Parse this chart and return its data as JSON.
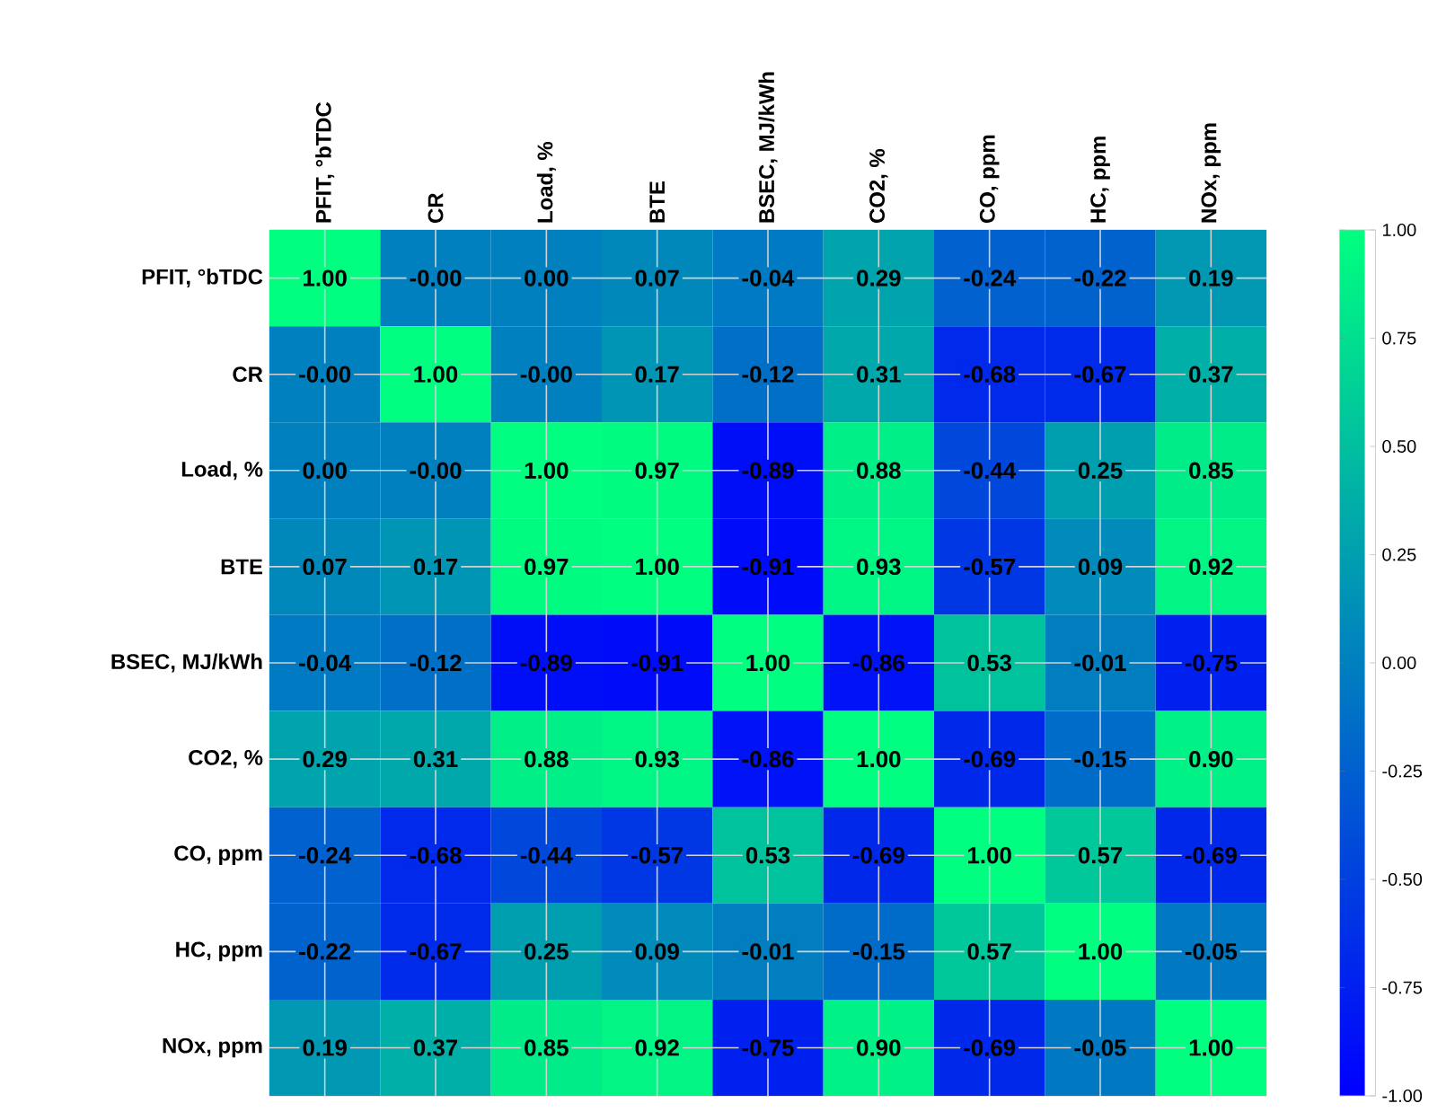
{
  "chart_data": {
    "type": "heatmap",
    "categories": [
      "PFIT, °bTDC",
      "CR",
      "Load, %",
      "BTE",
      "BSEC, MJ/kWh",
      "CO2, %",
      "CO, ppm",
      "HC, ppm",
      "NOx, ppm"
    ],
    "y_categories": [
      "PFIT, °bTDC",
      "CR",
      "Load, %",
      "BTE",
      "BSEC, MJ/kWh",
      "CO2, %",
      "CO, ppm",
      "HC, ppm",
      "NOx, ppm"
    ],
    "cells": [
      [
        1.0,
        0,
        0,
        0.07,
        -0.04,
        0.29,
        -0.24,
        -0.22,
        0.19
      ],
      [
        0,
        1.0,
        0,
        0.17,
        -0.12,
        0.31,
        -0.68,
        -0.67,
        0.37
      ],
      [
        0,
        0,
        1.0,
        0.97,
        -0.89,
        0.88,
        -0.44,
        0.25,
        0.85
      ],
      [
        0.07,
        0.17,
        0.97,
        1.0,
        -0.91,
        0.93,
        -0.57,
        0.09,
        0.92
      ],
      [
        -0.04,
        -0.12,
        -0.89,
        -0.91,
        1.0,
        -0.86,
        0.53,
        -0.01,
        -0.75
      ],
      [
        0.29,
        0.31,
        0.88,
        0.93,
        -0.86,
        1.0,
        -0.69,
        -0.15,
        0.9
      ],
      [
        -0.24,
        -0.68,
        -0.44,
        -0.57,
        0.53,
        -0.69,
        1.0,
        0.57,
        -0.69
      ],
      [
        -0.22,
        -0.67,
        0.25,
        0.09,
        -0.01,
        -0.15,
        0.57,
        1.0,
        -0.05
      ],
      [
        0.19,
        0.37,
        0.85,
        0.92,
        -0.75,
        0.9,
        -0.69,
        -0.05,
        1.0
      ]
    ],
    "cell_labels": [
      [
        "1.00",
        "-0.00",
        "0.00",
        "0.07",
        "-0.04",
        "0.29",
        "-0.24",
        "-0.22",
        "0.19"
      ],
      [
        "-0.00",
        "1.00",
        "-0.00",
        "0.17",
        "-0.12",
        "0.31",
        "-0.68",
        "-0.67",
        "0.37"
      ],
      [
        "0.00",
        "-0.00",
        "1.00",
        "0.97",
        "-0.89",
        "0.88",
        "-0.44",
        "0.25",
        "0.85"
      ],
      [
        "0.07",
        "0.17",
        "0.97",
        "1.00",
        "-0.91",
        "0.93",
        "-0.57",
        "0.09",
        "0.92"
      ],
      [
        "-0.04",
        "-0.12",
        "-0.89",
        "-0.91",
        "1.00",
        "-0.86",
        "0.53",
        "-0.01",
        "-0.75"
      ],
      [
        "0.29",
        "0.31",
        "0.88",
        "0.93",
        "-0.86",
        "1.00",
        "-0.69",
        "-0.15",
        "0.90"
      ],
      [
        "-0.24",
        "-0.68",
        "-0.44",
        "-0.57",
        "0.53",
        "-0.69",
        "1.00",
        "0.57",
        "-0.69"
      ],
      [
        "-0.22",
        "-0.67",
        "0.25",
        "0.09",
        "-0.01",
        "-0.15",
        "0.57",
        "1.00",
        "-0.05"
      ],
      [
        "0.19",
        "0.37",
        "0.85",
        "0.92",
        "-0.75",
        "0.90",
        "-0.69",
        "-0.05",
        "1.00"
      ]
    ],
    "clim": [
      -1,
      1
    ],
    "cticks": [
      {
        "value": -1,
        "label": "-1.00"
      },
      {
        "value": -0.75,
        "label": "-0.75"
      },
      {
        "value": -0.5,
        "label": "-0.50"
      },
      {
        "value": -0.25,
        "label": "-0.25"
      },
      {
        "value": 0,
        "label": "0.00"
      },
      {
        "value": 0.25,
        "label": "0.25"
      },
      {
        "value": 0.5,
        "label": "0.50"
      },
      {
        "value": 0.75,
        "label": "0.75"
      },
      {
        "value": 1,
        "label": "1.00"
      }
    ],
    "grid": true
  }
}
